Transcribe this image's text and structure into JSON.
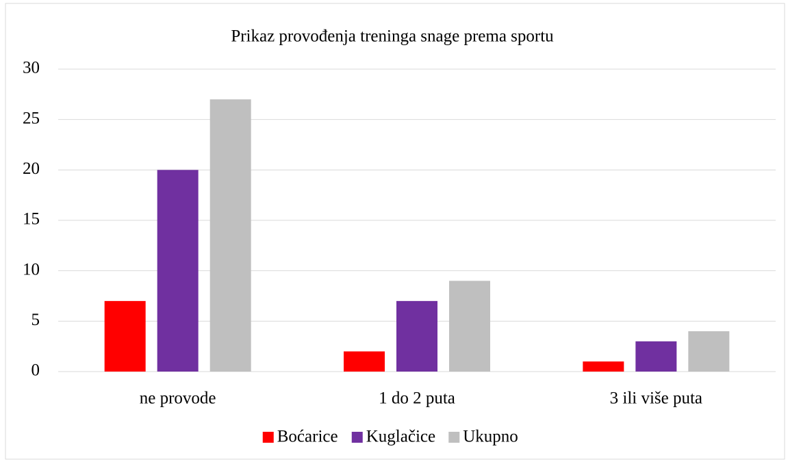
{
  "chart_data": {
    "type": "bar",
    "title": "Prikaz provođenja treninga snage prema sportu",
    "categories": [
      "ne provode",
      "1 do 2 puta",
      "3 ili više puta"
    ],
    "series": [
      {
        "name": "Boćarice",
        "color": "#ff0000",
        "values": [
          7,
          2,
          1
        ]
      },
      {
        "name": "Kuglačice",
        "color": "#7030a0",
        "values": [
          20,
          7,
          3
        ]
      },
      {
        "name": "Ukupno",
        "color": "#bfbfbf",
        "values": [
          27,
          9,
          4
        ]
      }
    ],
    "ylim": [
      0,
      30
    ],
    "yticks": [
      0,
      5,
      10,
      15,
      20,
      25,
      30
    ],
    "grid": true,
    "legend": "bottom"
  }
}
